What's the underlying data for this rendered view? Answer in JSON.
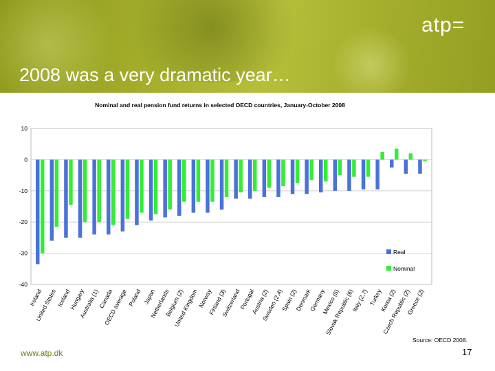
{
  "slide": {
    "title": "2008 was a very dramatic year…",
    "logo_text": "atp=",
    "footer_url": "www.atp.dk",
    "page_number": "17",
    "source": "Source: OECD 2008."
  },
  "colors": {
    "real": "#4a72d8",
    "nominal": "#33ee33",
    "banner": "#a3ad2a"
  },
  "chart_data": {
    "type": "bar",
    "title": "Nominal and real pension fund returns in selected OECD countries, January-October 2008",
    "xlabel": "",
    "ylabel": "",
    "ylim": [
      -40,
      10
    ],
    "yticks": [
      10,
      0,
      -10,
      -20,
      -30,
      -40
    ],
    "grid": true,
    "legend_position": "right",
    "categories": [
      "Ireland",
      "United States",
      "Iceland",
      "Hungary",
      "Australia (1)",
      "Canada",
      "OECD average",
      "Poland",
      "Japan",
      "Netherlands",
      "Belgium (2)",
      "United Kingdom",
      "Norway",
      "Finland (3)",
      "Switzerland",
      "Portugal",
      "Austria (2)",
      "Sweden (2,4)",
      "Spain (2)",
      "Denmark",
      "Germany",
      "Mexico (5)",
      "Slovak Republic (6)",
      "Italy (2,7)",
      "Turkey",
      "Korea (2)",
      "Czech Republic (2)",
      "Greece (2)"
    ],
    "series": [
      {
        "name": "Real",
        "values": [
          -33.5,
          -26,
          -25,
          -25,
          -24,
          -24,
          -23,
          -21,
          -19.5,
          -18.5,
          -18,
          -17,
          -17,
          -16,
          -12.5,
          -12.5,
          -12,
          -12,
          -11,
          -11,
          -10.5,
          -10,
          -10,
          -9.5,
          -9.5,
          -2.5,
          -4.5,
          -4.5
        ]
      },
      {
        "name": "Nominal",
        "values": [
          -30,
          -21.5,
          -14.5,
          -20,
          -20,
          -21,
          -19,
          -17,
          -17.5,
          -16,
          -13.5,
          -13.5,
          -13.5,
          -12,
          -10.5,
          -10,
          -9,
          -8.5,
          -7.5,
          -6.5,
          -7,
          -5,
          -5.5,
          -5.5,
          2.5,
          3.5,
          2,
          -0.5
        ]
      }
    ]
  }
}
